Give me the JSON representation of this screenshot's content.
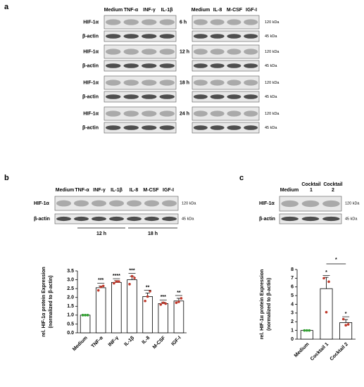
{
  "panel_a": {
    "label": "a",
    "lanes_left": [
      "Medium",
      "TNF-α",
      "INF-γ",
      "IL-1β"
    ],
    "lanes_right": [
      "Medium",
      "IL-8",
      "M-CSF",
      "IGF-I"
    ],
    "rows": [
      "HIF-1α",
      "β-actin"
    ],
    "times": [
      "6 h",
      "12 h",
      "18 h",
      "24 h"
    ],
    "kda": [
      "120 kDa",
      "45 kDa"
    ]
  },
  "panel_b": {
    "label": "b",
    "lanes": [
      "Medium",
      "TNF-α",
      "INF-γ",
      "IL-1β",
      "IL-8",
      "M-CSF",
      "IGF-I"
    ],
    "rows": [
      "HIF-1α",
      "β-actin"
    ],
    "kda": [
      "120 kDa",
      "45 kDa"
    ],
    "times": [
      "12 h",
      "18 h"
    ]
  },
  "panel_c": {
    "label": "c",
    "lanes": [
      [
        "Medium"
      ],
      [
        "Cocktail",
        "1"
      ],
      [
        "Cocktail",
        "2"
      ]
    ],
    "rows": [
      "HIF-1α",
      "β-actin"
    ],
    "kda": [
      "120 kDa",
      "45 kDa"
    ]
  },
  "chart_data": [
    {
      "type": "bar",
      "ylabel": [
        "rel. HIF-1α protein Expression",
        "(normalized to β-actin)"
      ],
      "categories": [
        "Medium",
        "TNF-α",
        "INF-γ",
        "IL-1β",
        "IL-8",
        "M-CSF",
        "IGF-I"
      ],
      "values": [
        1.0,
        2.55,
        2.85,
        3.0,
        2.05,
        1.65,
        1.8
      ],
      "errors": [
        0,
        0.1,
        0.1,
        0.2,
        0.2,
        0.08,
        0.15
      ],
      "points": [
        [
          1,
          1,
          1
        ],
        [
          2.4,
          2.6,
          2.65
        ],
        [
          2.8,
          2.9,
          2.9
        ],
        [
          2.75,
          3.2,
          3.1
        ],
        [
          1.8,
          2.05,
          2.35
        ],
        [
          1.6,
          1.7,
          1.65
        ],
        [
          1.7,
          1.75,
          1.95
        ]
      ],
      "point_colors": [
        "#2e9e2e",
        "#c0392b",
        "#c0392b",
        "#c0392b",
        "#c0392b",
        "#c0392b",
        "#c0392b"
      ],
      "significance": [
        null,
        "***",
        "****",
        "***",
        "**",
        "***",
        "**"
      ],
      "color": "#ffffff",
      "ylim": [
        0,
        3.5
      ],
      "yticks": [
        {
          "value": 0,
          "label": "0.0"
        },
        {
          "value": 0.5,
          "label": "0.5"
        },
        {
          "value": 1,
          "label": "1.0"
        },
        {
          "value": 1.5,
          "label": "1.5"
        },
        {
          "value": 2,
          "label": "2.0"
        },
        {
          "value": 2.5,
          "label": "2.5"
        },
        {
          "value": 3,
          "label": "3.0"
        },
        {
          "value": 3.5,
          "label": "3.5"
        }
      ]
    },
    {
      "type": "bar",
      "ylabel": [
        "rel. HIF-1α protein Expression",
        "(normalized to β-actin)"
      ],
      "categories": [
        "Medium",
        "Cocktail 1",
        "Cocktail 2"
      ],
      "values": [
        1.0,
        5.8,
        1.9
      ],
      "errors": [
        0,
        1.3,
        0.35
      ],
      "points": [
        [
          1,
          1,
          1
        ],
        [
          7.0,
          3.1,
          6.6
        ],
        [
          2.3,
          1.6,
          1.7
        ]
      ],
      "point_colors": [
        "#2e9e2e",
        "#c0392b",
        "#c0392b"
      ],
      "significance": [
        null,
        "*",
        "*"
      ],
      "comparison": "*",
      "color": "#ffffff",
      "ylim": [
        0,
        8
      ],
      "yticks": [
        0,
        1,
        2,
        3,
        4,
        5,
        6,
        7,
        8
      ]
    }
  ]
}
